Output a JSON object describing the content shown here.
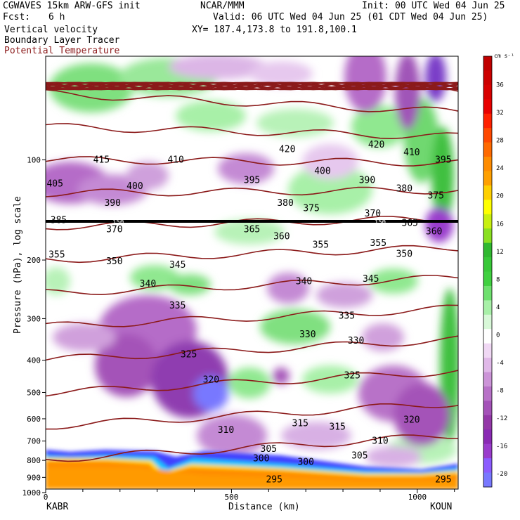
{
  "header": {
    "model": "CGWAVES 15km ARW-GFS init",
    "org": "NCAR/MMM",
    "init": "Init: 00 UTC Wed 04 Jun 25",
    "fcst_label": "Fcst:",
    "fcst_value": "6 h",
    "valid": "Valid: 06 UTC Wed 04 Jun 25 (01 CDT Wed 04 Jun 25)",
    "field1": "Vertical velocity",
    "field2": "Boundary Layer Tracer",
    "field3": "Potential Temperature",
    "xy": "XY= 187.4,173.8 to 191.8,100.1"
  },
  "axes": {
    "ylabel": "Pressure (hPa), log scale",
    "xlabel": "Distance (km)",
    "left_station": "KABR",
    "right_station": "KOUN"
  },
  "colorbar": {
    "unit": "cm s⁻¹",
    "levels": [
      -22,
      -20,
      -18,
      -16,
      -14,
      -12,
      -10,
      -8,
      -6,
      -4,
      -2,
      2,
      4,
      6,
      8,
      10,
      12,
      14,
      16,
      18,
      20,
      22,
      24,
      26,
      28,
      30,
      32,
      34,
      36,
      38,
      40
    ],
    "labels": [
      "36",
      "32",
      "28",
      "24",
      "20",
      "16",
      "12",
      "8",
      "4",
      "0",
      "-4",
      "-8",
      "-12",
      "-16",
      "-20"
    ],
    "label_values": [
      36,
      32,
      28,
      24,
      20,
      16,
      12,
      8,
      4,
      0,
      -4,
      -8,
      -12,
      -16,
      -20
    ],
    "colors": [
      "#7878ff",
      "#8c5cff",
      "#9a3ccc",
      "#8a2ab4",
      "#9438a8",
      "#a452b8",
      "#b872c8",
      "#cc94d8",
      "#e0b8e8",
      "#f0d8f4",
      "#ffffff",
      "#d8f8d8",
      "#a8f0a8",
      "#6ee06e",
      "#40d040",
      "#38c838",
      "#30b830",
      "#8ae020",
      "#c8f010",
      "#ffff00",
      "#ffd000",
      "#ffa000",
      "#ff8c00",
      "#ff6a00",
      "#ff4800",
      "#ff2000",
      "#e80000",
      "#d80000",
      "#cc0000",
      "#c00000"
    ],
    "colors_map": {
      "accent_line": "#8b1a1a",
      "thick_line": "#000000"
    }
  },
  "chart_data": {
    "type": "heatmap",
    "x_range_km": [
      0,
      1110
    ],
    "x_ticks": [
      0,
      500,
      1000
    ],
    "y_range_hpa": [
      1000,
      50
    ],
    "y_scale": "log",
    "y_ticks": [
      100,
      200,
      300,
      400,
      500,
      600,
      700,
      800,
      900,
      1000
    ],
    "theta_isentropes": [
      {
        "label": "415",
        "x": 150,
        "p": 100
      },
      {
        "label": "410",
        "x": 350,
        "p": 100
      },
      {
        "label": "420",
        "x": 650,
        "p": 93
      },
      {
        "label": "420",
        "x": 890,
        "p": 90
      },
      {
        "label": "410",
        "x": 985,
        "p": 95
      },
      {
        "label": "395",
        "x": 1070,
        "p": 100
      },
      {
        "label": "405",
        "x": 25,
        "p": 118
      },
      {
        "label": "400",
        "x": 240,
        "p": 120
      },
      {
        "label": "395",
        "x": 555,
        "p": 115
      },
      {
        "label": "400",
        "x": 745,
        "p": 108
      },
      {
        "label": "390",
        "x": 865,
        "p": 115
      },
      {
        "label": "380",
        "x": 965,
        "p": 122
      },
      {
        "label": "375",
        "x": 1050,
        "p": 128
      },
      {
        "label": "390",
        "x": 180,
        "p": 135
      },
      {
        "label": "380",
        "x": 645,
        "p": 135
      },
      {
        "label": "375",
        "x": 715,
        "p": 140
      },
      {
        "label": "370",
        "x": 880,
        "p": 145
      },
      {
        "label": "385",
        "x": 35,
        "p": 152
      },
      {
        "label": "370",
        "x": 185,
        "p": 162
      },
      {
        "label": "365",
        "x": 555,
        "p": 162
      },
      {
        "label": "365",
        "x": 980,
        "p": 155
      },
      {
        "label": "360",
        "x": 635,
        "p": 170
      },
      {
        "label": "360",
        "x": 1045,
        "p": 164
      },
      {
        "label": "355",
        "x": 740,
        "p": 180
      },
      {
        "label": "355",
        "x": 895,
        "p": 178
      },
      {
        "label": "350",
        "x": 965,
        "p": 192
      },
      {
        "label": "355",
        "x": 30,
        "p": 193
      },
      {
        "label": "350",
        "x": 185,
        "p": 202
      },
      {
        "label": "345",
        "x": 355,
        "p": 207
      },
      {
        "label": "340",
        "x": 275,
        "p": 236
      },
      {
        "label": "340",
        "x": 695,
        "p": 232
      },
      {
        "label": "345",
        "x": 875,
        "p": 228
      },
      {
        "label": "335",
        "x": 355,
        "p": 274
      },
      {
        "label": "335",
        "x": 810,
        "p": 294
      },
      {
        "label": "330",
        "x": 705,
        "p": 335
      },
      {
        "label": "330",
        "x": 835,
        "p": 350
      },
      {
        "label": "325",
        "x": 385,
        "p": 385
      },
      {
        "label": "325",
        "x": 825,
        "p": 445
      },
      {
        "label": "320",
        "x": 445,
        "p": 458
      },
      {
        "label": "320",
        "x": 985,
        "p": 605
      },
      {
        "label": "310",
        "x": 485,
        "p": 648
      },
      {
        "label": "315",
        "x": 685,
        "p": 620
      },
      {
        "label": "315",
        "x": 785,
        "p": 635
      },
      {
        "label": "310",
        "x": 900,
        "p": 700
      },
      {
        "label": "305",
        "x": 600,
        "p": 740
      },
      {
        "label": "305",
        "x": 845,
        "p": 775
      },
      {
        "label": "300",
        "x": 580,
        "p": 790
      },
      {
        "label": "300",
        "x": 700,
        "p": 810
      },
      {
        "label": "295",
        "x": 615,
        "p": 915
      },
      {
        "label": "295",
        "x": 1070,
        "p": 915
      }
    ],
    "reference_line": {
      "label": "150",
      "p": 153,
      "labels_at_km": [
        195,
        900
      ]
    },
    "series": [
      {
        "values": [
          {
            "x": 0,
            "p": 120
          },
          {
            "x": 1110,
            "p": 115
          }
        ]
      }
    ]
  }
}
